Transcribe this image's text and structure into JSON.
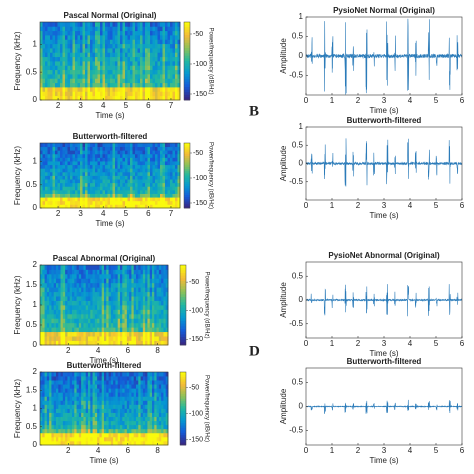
{
  "panel_labels": [
    "B",
    "D"
  ],
  "chart_data": [
    {
      "type": "spectrogram",
      "title": "Pascal Normal (Original)",
      "xlabel": "Time (s)",
      "ylabel": "Frequency (kHz)",
      "xlim": [
        1.2,
        7.4
      ],
      "xticks": [
        2,
        3,
        4,
        5,
        6,
        7
      ],
      "ylim": [
        0,
        1.4
      ],
      "yticks": [
        0,
        0.5,
        1
      ],
      "colorbar": {
        "label": "Power/frequency (dB/Hz)",
        "clim": [
          -160,
          -30
        ],
        "ticks": [
          -50,
          -100,
          -150
        ]
      }
    },
    {
      "type": "spectrogram",
      "title": "Butterworth-filtered",
      "xlabel": "Time (s)",
      "ylabel": "Frequency (kHz)",
      "xlim": [
        1.2,
        7.4
      ],
      "xticks": [
        2,
        3,
        4,
        5,
        6,
        7
      ],
      "ylim": [
        0,
        1.4
      ],
      "yticks": [
        0,
        0.5,
        1
      ],
      "colorbar": {
        "label": "Power/frequency (dB/Hz)",
        "clim": [
          -160,
          -30
        ],
        "ticks": [
          -50,
          -100,
          -150
        ]
      }
    },
    {
      "type": "spectrogram",
      "title": "Pascal Abnormal (Original)",
      "xlabel": "Time (s)",
      "ylabel": "Frequency (kHz)",
      "xlim": [
        0.1,
        8.7
      ],
      "xticks": [
        2,
        4,
        6,
        8
      ],
      "ylim": [
        0,
        2
      ],
      "yticks": [
        0,
        0.5,
        1,
        1.5,
        2
      ],
      "colorbar": {
        "label": "Power/frequency (dB/Hz)",
        "clim": [
          -160,
          -20
        ],
        "ticks": [
          -50,
          -100,
          -150
        ]
      }
    },
    {
      "type": "spectrogram",
      "title": "Butterworth-filtered",
      "xlabel": "Time (s)",
      "ylabel": "Frequency (kHz)",
      "xlim": [
        0.1,
        8.7
      ],
      "xticks": [
        2,
        4,
        6,
        8
      ],
      "ylim": [
        0,
        2
      ],
      "yticks": [
        0,
        0.5,
        1,
        1.5,
        2
      ],
      "colorbar": {
        "label": "Power/frequency (dB/Hz)",
        "clim": [
          -160,
          -20
        ],
        "ticks": [
          -50,
          -100,
          -150
        ]
      }
    },
    {
      "type": "waveform",
      "title": "PysioNet Normal (Original)",
      "xlabel": "Time (s)",
      "ylabel": "Amplitude",
      "color": "#2b7bb9",
      "xlim": [
        0,
        6
      ],
      "xticks": [
        0,
        1,
        2,
        3,
        4,
        5,
        6
      ],
      "ylim": [
        -1,
        1
      ],
      "yticks": [
        -0.5,
        0,
        0.5,
        1
      ]
    },
    {
      "type": "waveform",
      "title": "Butterworth-filtered",
      "xlabel": "Time (s)",
      "ylabel": "Amplitude",
      "color": "#2b7bb9",
      "xlim": [
        0,
        6
      ],
      "xticks": [
        0,
        1,
        2,
        3,
        4,
        5,
        6
      ],
      "ylim": [
        -1,
        1
      ],
      "yticks": [
        -0.5,
        0,
        0.5,
        1
      ]
    },
    {
      "type": "waveform",
      "title": "PysioNet Abnormal (Original)",
      "xlabel": "Time (s)",
      "ylabel": "Amplitude",
      "color": "#2b7bb9",
      "xlim": [
        0,
        6
      ],
      "xticks": [
        0,
        1,
        2,
        3,
        4,
        5,
        6
      ],
      "ylim": [
        -0.8,
        0.8
      ],
      "yticks": [
        -0.5,
        0,
        0.5
      ]
    },
    {
      "type": "waveform",
      "title": "Butterworth-filtered",
      "xlabel": "Time (s)",
      "ylabel": "Amplitude",
      "color": "#2b7bb9",
      "xlim": [
        0,
        6
      ],
      "xticks": [
        0,
        1,
        2,
        3,
        4,
        5,
        6
      ],
      "ylim": [
        -0.8,
        0.8
      ],
      "yticks": [
        -0.5,
        0,
        0.5
      ]
    }
  ]
}
